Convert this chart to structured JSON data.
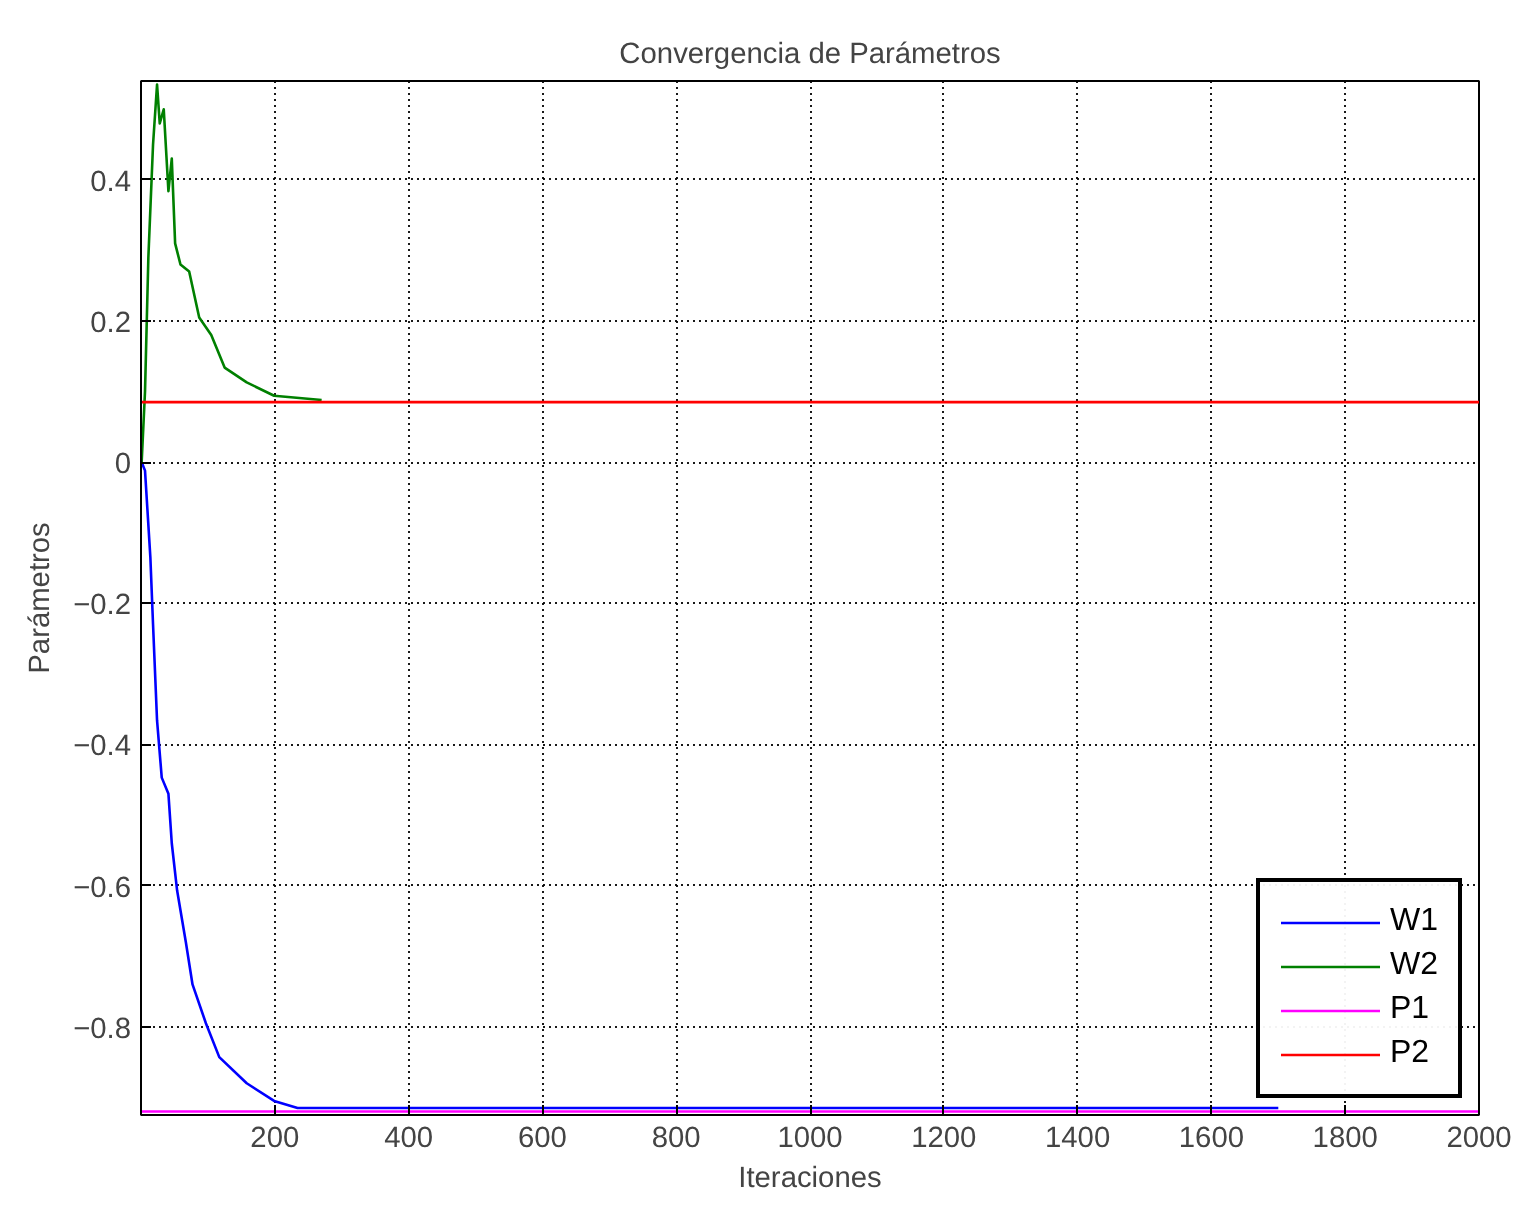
{
  "chart_data": {
    "type": "line",
    "title": "Convergencia de Parámetros",
    "xlabel": "Iteraciones",
    "ylabel": "Parámetros",
    "xlim": [
      0,
      2000
    ],
    "ylim": [
      -0.925,
      0.54
    ],
    "xticks": [
      200,
      400,
      600,
      800,
      1000,
      1200,
      1400,
      1600,
      1800,
      2000
    ],
    "yticks": [
      -0.8,
      -0.6,
      -0.4,
      -0.2,
      0,
      0.2,
      0.4
    ],
    "grid": true,
    "legend": "bottom right",
    "line_style": "solid",
    "marker": "none",
    "series": [
      {
        "name": "W1",
        "color": "#0000ff",
        "x": [
          1,
          6,
          14,
          18,
          24,
          31,
          41,
          46,
          54,
          67,
          77,
          97,
          117,
          158,
          199,
          234,
          1700
        ],
        "values": [
          0,
          -0.012,
          -0.135,
          -0.23,
          -0.366,
          -0.447,
          -0.47,
          -0.54,
          -0.607,
          -0.68,
          -0.74,
          -0.795,
          -0.843,
          -0.88,
          -0.905,
          -0.915,
          -0.915
        ]
      },
      {
        "name": "W2",
        "color": "#008000",
        "x": [
          1,
          6,
          11,
          18,
          24,
          28,
          34,
          41,
          46,
          51,
          59,
          72,
          87,
          105,
          125,
          158,
          199,
          270
        ],
        "values": [
          0,
          0.1,
          0.29,
          0.45,
          0.535,
          0.48,
          0.5,
          0.384,
          0.43,
          0.31,
          0.28,
          0.27,
          0.205,
          0.18,
          0.134,
          0.113,
          0.094,
          0.088
        ]
      },
      {
        "name": "P1",
        "color": "#ff00ff",
        "x": [
          1,
          2000
        ],
        "values": [
          -0.92,
          -0.92
        ]
      },
      {
        "name": "P2",
        "color": "#ff0000",
        "x": [
          1,
          2000
        ],
        "values": [
          0.085,
          0.085
        ]
      }
    ]
  }
}
